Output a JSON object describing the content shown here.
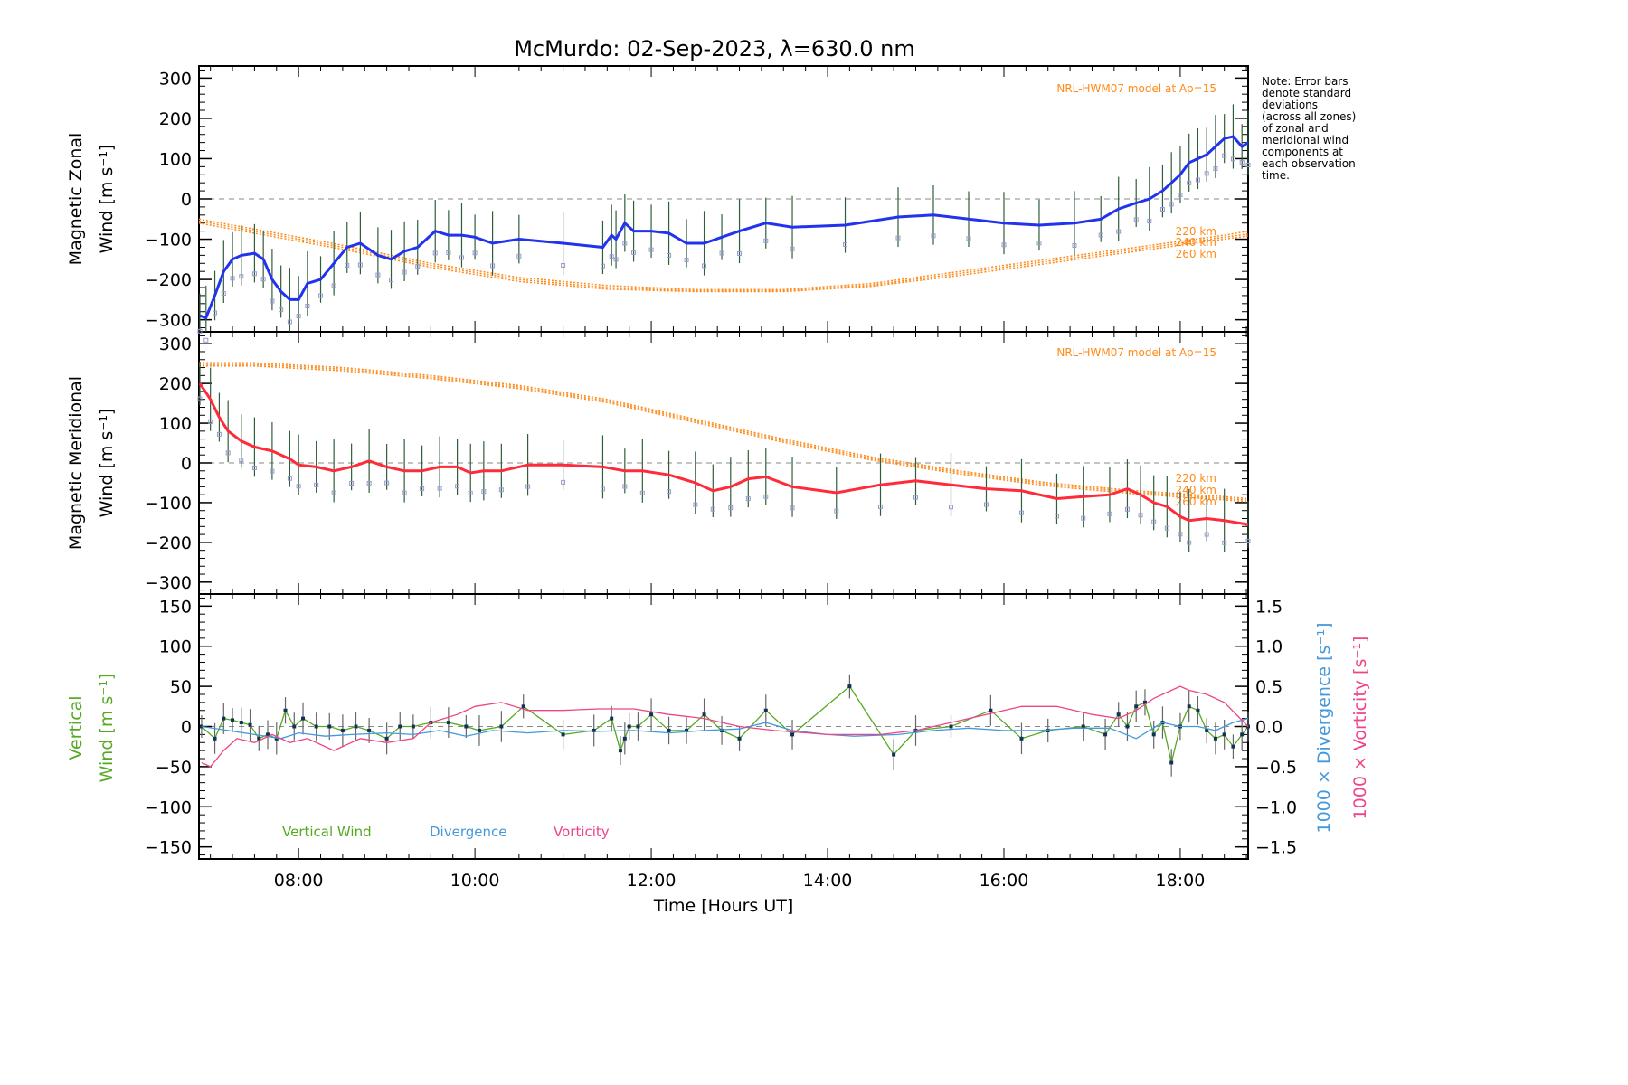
{
  "chart_data": [
    {
      "type": "line",
      "panel": "zonal",
      "title": "McMurdo: 02-Sep-2023, λ=630.0 nm",
      "ylabel_line1": "Magnetic Zonal",
      "ylabel_line2": "Wind [m s⁻¹]",
      "xlim_hours": [
        6.87,
        18.77
      ],
      "ylim": [
        -330,
        330
      ],
      "yticks": [
        300,
        200,
        100,
        0,
        -100,
        -200,
        -300
      ],
      "ytick_labels": [
        "300",
        "200",
        "100",
        "0",
        "−100",
        "−200",
        "−300"
      ],
      "model_label": "NRL-HWM07 model at Ap=15",
      "model_altitude_labels": [
        "220 km",
        "240 km",
        "260 km"
      ],
      "model": {
        "x": [
          6.87,
          7.5,
          8.5,
          9.5,
          10.5,
          11.5,
          12.5,
          13.5,
          14.5,
          15.5,
          16.5,
          17.5,
          18.5,
          18.77
        ],
        "series": [
          {
            "name": "220 km",
            "values": [
              -50,
              -75,
              -115,
              -160,
              -195,
              -215,
              -225,
              -225,
              -210,
              -180,
              -150,
              -120,
              -90,
              -80
            ]
          },
          {
            "name": "240 km",
            "values": [
              -55,
              -80,
              -120,
              -165,
              -200,
              -220,
              -228,
              -228,
              -214,
              -185,
              -155,
              -125,
              -95,
              -87
            ]
          },
          {
            "name": "260 km",
            "values": [
              -60,
              -85,
              -125,
              -170,
              -205,
              -224,
              -230,
              -230,
              -217,
              -190,
              -160,
              -130,
              -100,
              -92
            ]
          }
        ]
      },
      "series": [
        {
          "name": "Zonal wind",
          "color": "#2233ee",
          "x": [
            6.88,
            6.95,
            7.05,
            7.15,
            7.25,
            7.35,
            7.5,
            7.6,
            7.7,
            7.8,
            7.9,
            8.0,
            8.1,
            8.25,
            8.4,
            8.55,
            8.7,
            8.9,
            9.05,
            9.2,
            9.35,
            9.55,
            9.7,
            9.85,
            10.0,
            10.2,
            10.5,
            11.0,
            11.45,
            11.55,
            11.6,
            11.7,
            11.8,
            12.0,
            12.2,
            12.4,
            12.6,
            12.8,
            13.0,
            13.3,
            13.6,
            14.2,
            14.8,
            15.2,
            15.6,
            16.0,
            16.4,
            16.8,
            17.1,
            17.3,
            17.5,
            17.65,
            17.8,
            17.9,
            18.0,
            18.1,
            18.2,
            18.3,
            18.4,
            18.5,
            18.6,
            18.7,
            18.77
          ],
          "values": [
            -290,
            -295,
            -240,
            -180,
            -150,
            -140,
            -135,
            -150,
            -200,
            -230,
            -250,
            -250,
            -210,
            -200,
            -160,
            -120,
            -110,
            -140,
            -150,
            -130,
            -120,
            -80,
            -90,
            -90,
            -95,
            -110,
            -100,
            -110,
            -120,
            -90,
            -100,
            -60,
            -80,
            -80,
            -85,
            -110,
            -110,
            -95,
            -80,
            -60,
            -70,
            -65,
            -45,
            -40,
            -50,
            -60,
            -65,
            -60,
            -50,
            -25,
            -10,
            0,
            20,
            40,
            60,
            90,
            100,
            110,
            130,
            150,
            155,
            130,
            140
          ]
        }
      ]
    },
    {
      "type": "line",
      "panel": "meridional",
      "ylabel_line1": "Magnetic Meridional",
      "ylabel_line2": "Wind [m s⁻¹]",
      "xlim_hours": [
        6.87,
        18.77
      ],
      "ylim": [
        -330,
        330
      ],
      "yticks": [
        300,
        200,
        100,
        0,
        -100,
        -200,
        -300
      ],
      "ytick_labels": [
        "300",
        "200",
        "100",
        "0",
        "−100",
        "−200",
        "−300"
      ],
      "model_label": "NRL-HWM07 model at Ap=15",
      "model_altitude_labels": [
        "220 km",
        "240 km",
        "260 km"
      ],
      "model": {
        "x": [
          6.87,
          7.5,
          8.5,
          9.5,
          10.5,
          11.5,
          12.5,
          13.5,
          14.5,
          15.5,
          16.5,
          17.5,
          18.5,
          18.77
        ],
        "series": [
          {
            "name": "220 km",
            "values": [
              252,
              252,
              240,
              220,
              195,
              160,
              110,
              60,
              15,
              -20,
              -50,
              -70,
              -85,
              -90
            ]
          },
          {
            "name": "240 km",
            "values": [
              248,
              248,
              236,
              216,
              191,
              156,
              106,
              56,
              11,
              -24,
              -54,
              -74,
              -89,
              -94
            ]
          },
          {
            "name": "260 km",
            "values": [
              244,
              244,
              232,
              212,
              187,
              152,
              102,
              52,
              7,
              -28,
              -58,
              -78,
              -93,
              -98
            ]
          }
        ]
      },
      "series": [
        {
          "name": "Meridional wind",
          "color": "#ff2a3a",
          "x": [
            6.88,
            7.0,
            7.1,
            7.2,
            7.35,
            7.5,
            7.7,
            7.9,
            8.0,
            8.2,
            8.4,
            8.6,
            8.8,
            9.0,
            9.2,
            9.4,
            9.6,
            9.8,
            9.95,
            10.1,
            10.3,
            10.6,
            11.0,
            11.45,
            11.7,
            11.9,
            12.2,
            12.5,
            12.7,
            12.9,
            13.1,
            13.3,
            13.6,
            14.1,
            14.6,
            15.0,
            15.4,
            15.8,
            16.2,
            16.6,
            16.9,
            17.2,
            17.4,
            17.55,
            17.7,
            17.85,
            18.0,
            18.1,
            18.3,
            18.5,
            18.77
          ],
          "values": [
            200,
            160,
            115,
            80,
            55,
            40,
            30,
            10,
            -5,
            -10,
            -20,
            -10,
            5,
            -10,
            -20,
            -20,
            -10,
            -10,
            -25,
            -20,
            -20,
            -5,
            -5,
            -10,
            -20,
            -20,
            -30,
            -50,
            -70,
            -60,
            -40,
            -35,
            -60,
            -75,
            -55,
            -45,
            -55,
            -65,
            -70,
            -90,
            -85,
            -80,
            -65,
            -80,
            -100,
            -110,
            -135,
            -145,
            -140,
            -145,
            -155
          ]
        }
      ]
    },
    {
      "type": "line",
      "panel": "vertical",
      "ylabel_line1": "Vertical",
      "ylabel_line2": "Wind [m s⁻¹]",
      "y2label_divergence": "1000 × Divergence [s⁻¹]",
      "y2label_vorticity": "1000 × Vorticity [s⁻¹]",
      "xlabel": "Time [Hours UT]",
      "xticks": [
        "08:00",
        "10:00",
        "12:00",
        "14:00",
        "16:00",
        "18:00"
      ],
      "xtick_hours": [
        8,
        10,
        12,
        14,
        16,
        18
      ],
      "xlim_hours": [
        6.87,
        18.77
      ],
      "ylim": [
        -165,
        165
      ],
      "yticks": [
        150,
        100,
        50,
        0,
        -50,
        -100,
        -150
      ],
      "ytick_labels": [
        "150",
        "100",
        "50",
        "0",
        "−50",
        "−100",
        "−150"
      ],
      "y2lim": [
        -1.65,
        1.65
      ],
      "y2ticks": [
        1.5,
        1.0,
        0.5,
        0.0,
        -0.5,
        -1.0,
        -1.5
      ],
      "y2tick_labels": [
        "1.5",
        "1.0",
        "0.5",
        "0.0",
        "−0.5",
        "−1.0",
        "−1.5"
      ],
      "legend": [
        "Vertical Wind",
        "Divergence",
        "Vorticity"
      ],
      "series": [
        {
          "name": "Vertical Wind",
          "color": "#55aa22",
          "x": [
            6.9,
            7.05,
            7.15,
            7.25,
            7.35,
            7.45,
            7.55,
            7.65,
            7.75,
            7.85,
            7.95,
            8.05,
            8.2,
            8.35,
            8.5,
            8.65,
            8.8,
            9.0,
            9.15,
            9.3,
            9.5,
            9.7,
            9.9,
            10.05,
            10.3,
            10.55,
            11.0,
            11.35,
            11.55,
            11.65,
            11.7,
            11.75,
            11.85,
            12.0,
            12.2,
            12.4,
            12.6,
            12.8,
            13.0,
            13.3,
            13.6,
            14.25,
            14.75,
            15.0,
            15.4,
            15.85,
            16.2,
            16.5,
            16.9,
            17.15,
            17.3,
            17.4,
            17.5,
            17.6,
            17.7,
            17.8,
            17.9,
            18.0,
            18.1,
            18.2,
            18.3,
            18.4,
            18.5,
            18.6,
            18.7,
            18.77
          ],
          "values": [
            0,
            -15,
            10,
            8,
            5,
            2,
            -15,
            -10,
            -15,
            20,
            0,
            10,
            0,
            0,
            -5,
            0,
            -5,
            -15,
            0,
            0,
            5,
            5,
            0,
            -5,
            0,
            25,
            -10,
            -5,
            10,
            -30,
            -15,
            0,
            0,
            15,
            -5,
            -5,
            15,
            -5,
            -15,
            20,
            -10,
            50,
            -35,
            -5,
            0,
            20,
            -15,
            -5,
            0,
            -10,
            15,
            0,
            25,
            30,
            -10,
            5,
            -45,
            0,
            25,
            20,
            -5,
            -15,
            -10,
            -25,
            -10,
            0
          ]
        },
        {
          "name": "Divergence",
          "color": "#4499dd",
          "axis": "right",
          "x": [
            6.9,
            7.2,
            7.5,
            7.8,
            8.0,
            8.3,
            8.6,
            9.0,
            9.3,
            9.6,
            9.9,
            10.2,
            10.6,
            11.0,
            11.4,
            11.8,
            12.2,
            12.6,
            13.0,
            13.3,
            13.6,
            14.0,
            14.3,
            14.8,
            15.2,
            15.6,
            16.0,
            16.4,
            16.8,
            17.2,
            17.5,
            17.8,
            18.0,
            18.2,
            18.4,
            18.6,
            18.77
          ],
          "values": [
            0.0,
            -0.05,
            -0.1,
            -0.15,
            -0.08,
            -0.12,
            -0.1,
            -0.08,
            -0.1,
            -0.05,
            -0.12,
            -0.05,
            -0.08,
            -0.05,
            -0.06,
            -0.05,
            -0.08,
            -0.05,
            -0.03,
            0.05,
            -0.05,
            -0.1,
            -0.12,
            -0.1,
            -0.05,
            -0.02,
            -0.05,
            -0.05,
            -0.02,
            -0.02,
            -0.15,
            0.05,
            0.0,
            0.0,
            -0.05,
            0.05,
            0.1
          ]
        },
        {
          "name": "Vorticity",
          "color": "#ee4488",
          "axis": "right",
          "x": [
            6.9,
            7.0,
            7.15,
            7.3,
            7.5,
            7.7,
            7.9,
            8.1,
            8.4,
            8.7,
            9.0,
            9.3,
            9.5,
            9.8,
            10.0,
            10.3,
            10.6,
            11.0,
            11.4,
            11.8,
            12.2,
            12.6,
            13.0,
            13.4,
            14.0,
            14.6,
            15.0,
            15.4,
            15.8,
            16.2,
            16.6,
            17.0,
            17.3,
            17.5,
            17.7,
            17.9,
            18.0,
            18.1,
            18.3,
            18.5,
            18.77
          ],
          "values": [
            -0.45,
            -0.5,
            -0.3,
            -0.15,
            -0.2,
            -0.1,
            -0.2,
            -0.15,
            -0.3,
            -0.15,
            -0.2,
            -0.15,
            0.05,
            0.15,
            0.25,
            0.3,
            0.2,
            0.2,
            0.22,
            0.22,
            0.15,
            0.1,
            0.0,
            -0.05,
            -0.1,
            -0.1,
            -0.05,
            0.05,
            0.15,
            0.25,
            0.25,
            0.15,
            0.1,
            0.2,
            0.35,
            0.45,
            0.5,
            0.45,
            0.4,
            0.3,
            0.0
          ]
        }
      ]
    }
  ],
  "note": [
    "Note: Error bars",
    "denote standard",
    "deviations",
    "(across all zones)",
    "of zonal and",
    "meridional wind",
    "components at",
    "each observation",
    "time."
  ],
  "colors": {
    "model": "#ff8a1a",
    "zonal": "#2233ee",
    "meridional": "#ff2a3a",
    "vertical": "#55aa22",
    "divergence": "#4499dd",
    "vorticity": "#ee4488",
    "zone_markers": "#9a9ad0",
    "error_bars": "#555555"
  }
}
